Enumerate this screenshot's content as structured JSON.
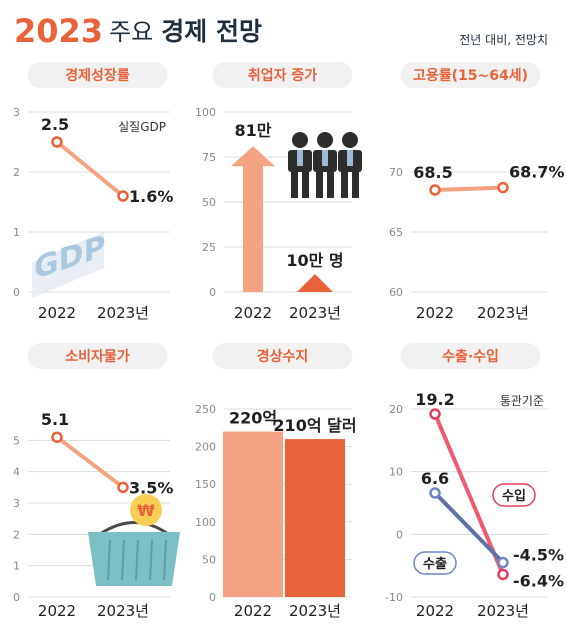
{
  "header": {
    "year": "2023",
    "title_mid": "주요",
    "title_bold": "경제 전망",
    "note": "전년 대비, 전망치"
  },
  "colors": {
    "accent": "#e8623a",
    "light_orange": "#f3a382",
    "pill_bg": "#f1f1f1",
    "export_blue": "#6f86c6",
    "import_red": "#e3405e",
    "grid": "#dcdcdc"
  },
  "chart_data": [
    {
      "type": "line",
      "title": "경제성장률",
      "note": "실질GDP",
      "categories": [
        "2022",
        "2023년"
      ],
      "values": [
        2.5,
        1.6
      ],
      "labels": [
        "2.5",
        "1.6%"
      ],
      "ylim": [
        0,
        3
      ],
      "yticks": [
        "0",
        "1",
        "2",
        "3"
      ],
      "grid": true,
      "icon": "gdp-3d-text-icon",
      "icon_text": "GDP"
    },
    {
      "type": "bar",
      "title": "취업자 증가",
      "categories": [
        "2022",
        "2023년"
      ],
      "values": [
        81,
        10
      ],
      "labels": [
        "81만",
        "10만 명"
      ],
      "ylim": [
        0,
        100
      ],
      "yticks": [
        "0",
        "25",
        "50",
        "75",
        "100"
      ],
      "grid": true,
      "mark": "arrow",
      "icon": "business-people-icon"
    },
    {
      "type": "line",
      "title": "고용률(15~64세)",
      "categories": [
        "2022",
        "2023년"
      ],
      "values": [
        68.5,
        68.7
      ],
      "labels": [
        "68.5",
        "68.7%"
      ],
      "ylim": [
        60,
        75
      ],
      "yticks": [
        "60",
        "65",
        "70"
      ],
      "grid": true
    },
    {
      "type": "line",
      "title": "소비자물가",
      "categories": [
        "2022",
        "2023년"
      ],
      "values": [
        5.1,
        3.5
      ],
      "labels": [
        "5.1",
        "3.5%"
      ],
      "ylim": [
        0,
        6
      ],
      "yticks": [
        "0",
        "1",
        "2",
        "3",
        "4",
        "5"
      ],
      "grid": true,
      "icon": "shopping-basket-won-icon",
      "icon_text": "₩"
    },
    {
      "type": "bar",
      "title": "경상수지",
      "categories": [
        "2022",
        "2023년"
      ],
      "values": [
        220,
        210
      ],
      "labels": [
        "220억",
        "210억 달러"
      ],
      "ylim": [
        0,
        250
      ],
      "yticks": [
        "0",
        "50",
        "100",
        "150",
        "200",
        "250"
      ],
      "grid": true,
      "mark": "rect"
    },
    {
      "type": "line",
      "title": "수출·수입",
      "note": "통관기준",
      "categories": [
        "2022",
        "2023년"
      ],
      "ylim": [
        -10,
        20
      ],
      "yticks": [
        "-10",
        "0",
        "10",
        "20"
      ],
      "grid": true,
      "series": [
        {
          "name": "수입",
          "values": [
            19.2,
            -6.4
          ],
          "labels": [
            "19.2",
            "-6.4%"
          ]
        },
        {
          "name": "수출",
          "values": [
            6.6,
            -4.5
          ],
          "labels": [
            "6.6",
            "-4.5%"
          ]
        }
      ]
    }
  ]
}
